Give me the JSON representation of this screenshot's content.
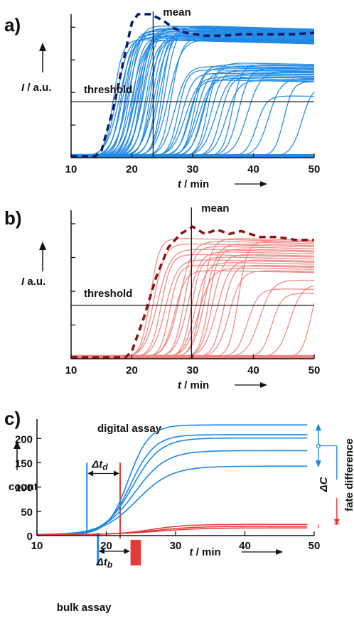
{
  "chart_data": [
    {
      "panel": "a)",
      "type": "line",
      "xlabel_var": "t",
      "xlabel_unit": " / min",
      "ylabel_var": "I",
      "ylabel_unit": " / a.u.",
      "xlim": [
        10,
        50
      ],
      "xticks": [
        10,
        20,
        30,
        40,
        50
      ],
      "ylim": [
        0,
        1
      ],
      "threshold_label": "threshold",
      "threshold_y": 0.39,
      "mean_label": "mean",
      "mean_x": 23.5,
      "series_color": "#1e88e5",
      "mean_color": "#0d1b6e",
      "plateau": 0.86,
      "plateau2": 0.59,
      "onset_times": [
        15.0,
        15.5,
        16.0,
        16.3,
        16.6,
        17.0,
        17.2,
        17.5,
        17.7,
        18.0,
        18.2,
        18.5,
        18.7,
        19.0,
        19.2,
        19.5,
        19.8,
        20.0,
        20.3,
        20.6,
        21.0,
        21.4,
        21.8,
        22.2,
        22.6,
        23.0,
        23.5,
        24.0,
        24.5,
        25.0,
        25.6,
        26.2,
        26.8,
        27.3,
        27.8,
        28.2,
        28.6,
        29.0,
        29.4,
        29.9,
        30.4,
        31.0,
        31.8,
        32.6,
        33.5,
        34.5,
        35.5,
        37.0,
        38.5,
        40.5,
        43.0,
        46.0
      ],
      "mean_curve": [
        [
          10,
          0.01
        ],
        [
          14,
          0.01
        ],
        [
          15,
          0.05
        ],
        [
          17,
          0.35
        ],
        [
          19,
          0.75
        ],
        [
          20,
          0.94
        ],
        [
          21,
          1.0
        ],
        [
          23,
          1.0
        ],
        [
          25,
          0.96
        ],
        [
          27,
          0.9
        ],
        [
          29,
          0.87
        ],
        [
          32,
          0.85
        ],
        [
          35,
          0.85
        ],
        [
          38,
          0.86
        ],
        [
          42,
          0.86
        ],
        [
          46,
          0.86
        ],
        [
          50,
          0.87
        ]
      ]
    },
    {
      "panel": "b)",
      "type": "line",
      "xlabel_var": "t",
      "xlabel_unit": " / min",
      "ylabel_var": "I",
      "ylabel_unit": " a.u.",
      "xlim": [
        10,
        50
      ],
      "xticks": [
        10,
        20,
        30,
        40,
        50
      ],
      "ylim": [
        0,
        1
      ],
      "threshold_label": "threshold",
      "threshold_y": 0.36,
      "mean_label": "mean",
      "mean_x": 29.8,
      "series_color": "#f0807a",
      "mean_color": "#8b1414",
      "plateau": 0.8,
      "onset_times": [
        21.0,
        21.6,
        22.2,
        22.8,
        23.5,
        24.2,
        25.0,
        25.8,
        26.6,
        27.2,
        27.8,
        28.4,
        29.0,
        29.5,
        30.0,
        30.6,
        31.2,
        32.0,
        33.0,
        34.0,
        35.5,
        37.0,
        39.0,
        41.0,
        44.0,
        47.5
      ],
      "mean_curve": [
        [
          10,
          0.01
        ],
        [
          19,
          0.01
        ],
        [
          20,
          0.05
        ],
        [
          22,
          0.28
        ],
        [
          24,
          0.55
        ],
        [
          26,
          0.75
        ],
        [
          28,
          0.84
        ],
        [
          30,
          0.89
        ],
        [
          32,
          0.84
        ],
        [
          34,
          0.87
        ],
        [
          36,
          0.84
        ],
        [
          38,
          0.86
        ],
        [
          41,
          0.82
        ],
        [
          44,
          0.82
        ],
        [
          47,
          0.8
        ],
        [
          50,
          0.8
        ]
      ]
    },
    {
      "panel": "c)",
      "type": "line",
      "xlabel_var": "t",
      "xlabel_unit": " / min",
      "ylabel": "count",
      "xlim": [
        10,
        50
      ],
      "xticks": [
        10,
        20,
        30,
        40,
        50
      ],
      "ylim": [
        0,
        240
      ],
      "yticks": [
        0,
        50,
        100,
        150,
        200
      ],
      "title": "digital assay",
      "bottom_label": "bulk assay",
      "delta_td_label": "Δt",
      "delta_td_sub": "d",
      "delta_tb_label": "Δt",
      "delta_tb_sub": "b",
      "delta_c_label": "ΔC",
      "fate_label": "fate difference",
      "t_blue_start": 17.2,
      "t_red_line": 22.0,
      "blue_color": "#1e88e5",
      "red_color": "#e53935",
      "bulk_bar_x": [
        23.5,
        25.0
      ],
      "bulk_blue_x": 18.8,
      "blue_series": [
        {
          "onset": 21.0,
          "final": 228
        },
        {
          "onset": 21.3,
          "final": 208
        },
        {
          "onset": 21.6,
          "final": 201
        },
        {
          "onset": 21.9,
          "final": 175
        },
        {
          "onset": 22.2,
          "final": 143
        }
      ],
      "red_series": [
        {
          "onset": 23.0,
          "final": 23
        },
        {
          "onset": 23.5,
          "final": 19
        },
        {
          "onset": 24.0,
          "final": 16
        }
      ],
      "blue_bracket": [
        143,
        228
      ],
      "blue_bracket_mid": 185,
      "red_bracket": [
        16,
        23
      ]
    }
  ]
}
